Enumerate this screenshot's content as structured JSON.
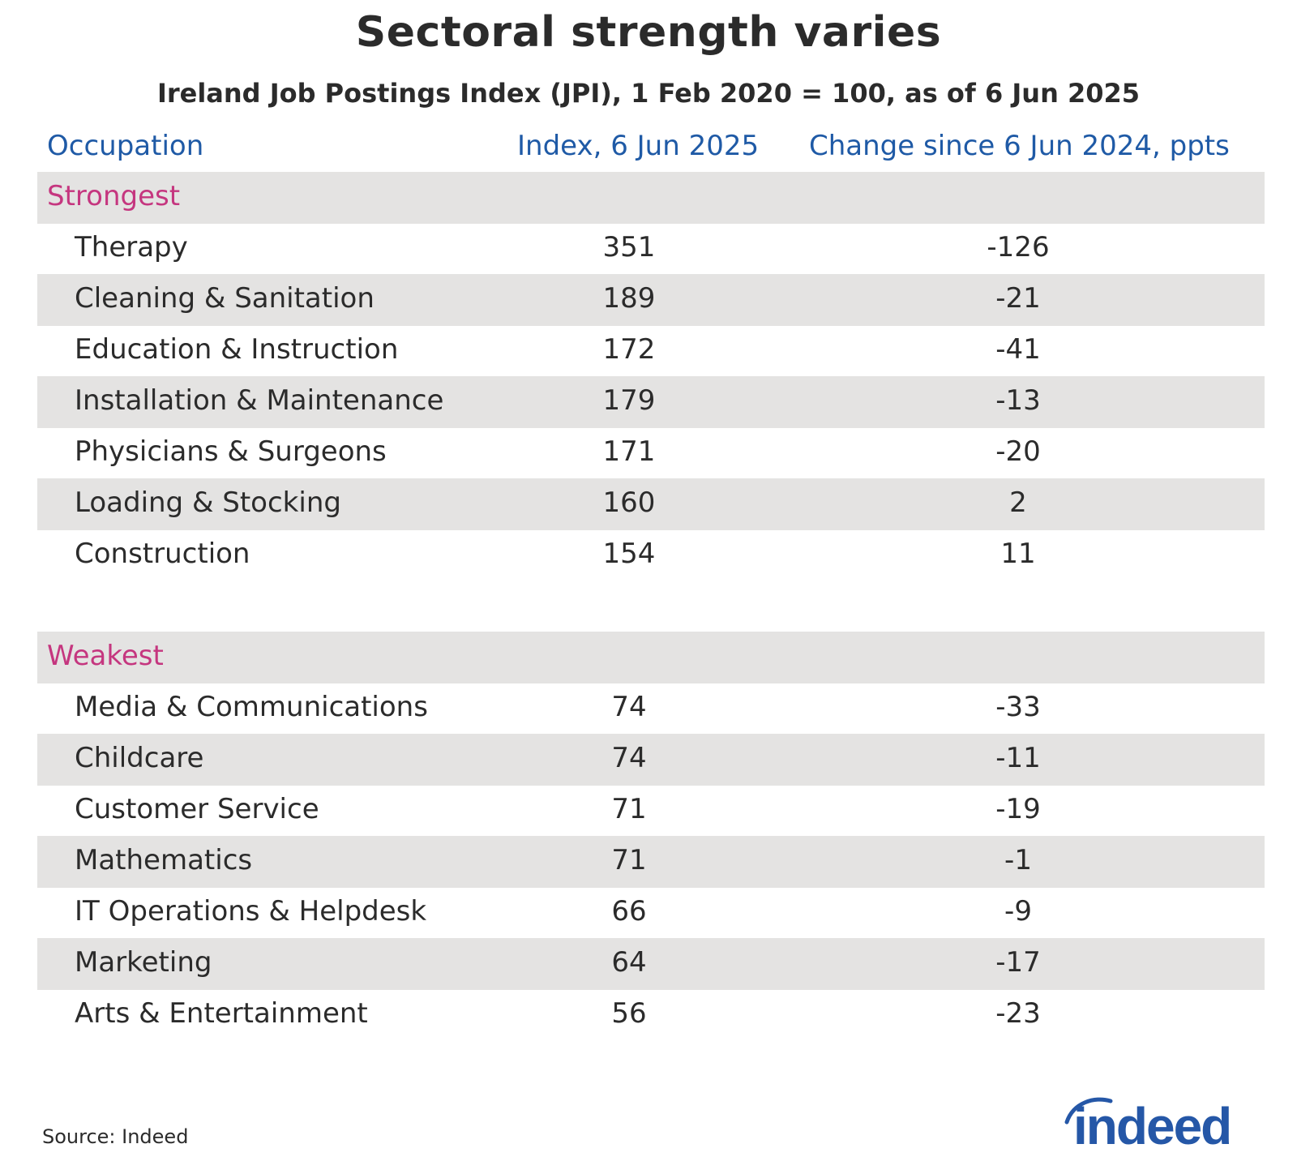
{
  "chart_data": {
    "type": "table",
    "title": "Sectoral strength varies",
    "subtitle": "Ireland Job Postings Index (JPI), 1 Feb 2020 = 100, as of 6 Jun 2025",
    "columns": [
      "Occupation",
      "Index, 6 Jun 2025",
      "Change since 6 Jun 2024, ppts"
    ],
    "sections": [
      {
        "name": "Strongest",
        "rows": [
          {
            "occupation": "Therapy",
            "index": 351,
            "change": -126
          },
          {
            "occupation": "Cleaning & Sanitation",
            "index": 189,
            "change": -21
          },
          {
            "occupation": "Education & Instruction",
            "index": 172,
            "change": -41
          },
          {
            "occupation": "Installation & Maintenance",
            "index": 179,
            "change": -13
          },
          {
            "occupation": "Physicians & Surgeons",
            "index": 171,
            "change": -20
          },
          {
            "occupation": "Loading & Stocking",
            "index": 160,
            "change": 2
          },
          {
            "occupation": "Construction",
            "index": 154,
            "change": 11
          }
        ]
      },
      {
        "name": "Weakest",
        "rows": [
          {
            "occupation": "Media & Communications",
            "index": 74,
            "change": -33
          },
          {
            "occupation": "Childcare",
            "index": 74,
            "change": -11
          },
          {
            "occupation": "Customer Service",
            "index": 71,
            "change": -19
          },
          {
            "occupation": "Mathematics",
            "index": 71,
            "change": -1
          },
          {
            "occupation": "IT Operations & Helpdesk",
            "index": 66,
            "change": -9
          },
          {
            "occupation": "Marketing",
            "index": 64,
            "change": -17
          },
          {
            "occupation": "Arts & Entertainment",
            "index": 56,
            "change": -23
          }
        ]
      }
    ]
  },
  "source": "Source: Indeed",
  "logo": {
    "text": "indeed",
    "color": "#2557a7"
  },
  "colors": {
    "header": "#1f5aa6",
    "section": "#c5367f",
    "shade": "#e4e3e2"
  }
}
